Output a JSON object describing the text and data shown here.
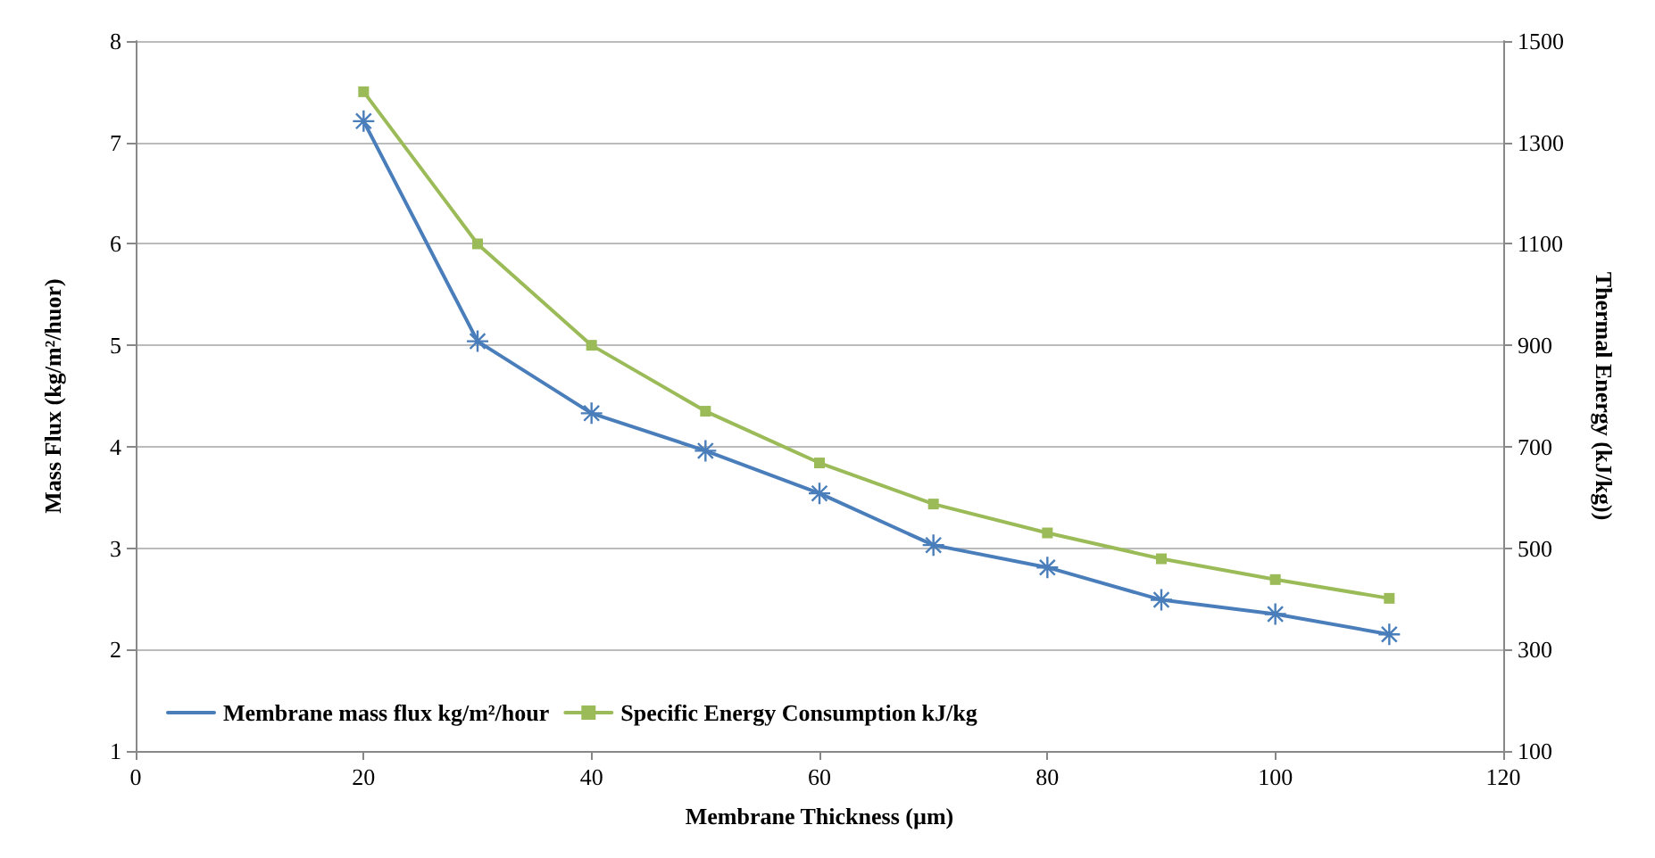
{
  "chart_data": {
    "type": "line",
    "xlabel": "Membrane Thickness (µm)",
    "ylabel": "Mass Flux (kg/m²/huor)",
    "y2label": "Thermal Energy (kJ/kg))",
    "x": [
      20,
      30,
      40,
      50,
      60,
      70,
      80,
      90,
      100,
      110
    ],
    "series": [
      {
        "name": "Membrane mass flux kg/m²/hour",
        "color": "#4a7ebb",
        "marker": "cross",
        "values": [
          7.21,
          5.04,
          4.33,
          3.96,
          3.54,
          3.03,
          2.81,
          2.49,
          2.35,
          2.15
        ]
      },
      {
        "name": "Specific Energy Consumption kJ/kg",
        "color": "#9bbb59",
        "marker": "square",
        "axis": "y2",
        "values": [
          1400,
          1100,
          900,
          770,
          668,
          587,
          530,
          479,
          438,
          401
        ]
      }
    ],
    "xlim": [
      0,
      120
    ],
    "xticks": [
      0,
      20,
      40,
      60,
      80,
      100,
      120
    ],
    "ylim": [
      1,
      8
    ],
    "yticks": [
      1,
      2,
      3,
      4,
      5,
      6,
      7,
      8
    ],
    "y2lim": [
      100,
      1500
    ],
    "y2ticks": [
      100,
      300,
      500,
      700,
      900,
      1100,
      1300,
      1500
    ],
    "grid": "y",
    "legend": "bottom left",
    "line_style": "solid"
  }
}
